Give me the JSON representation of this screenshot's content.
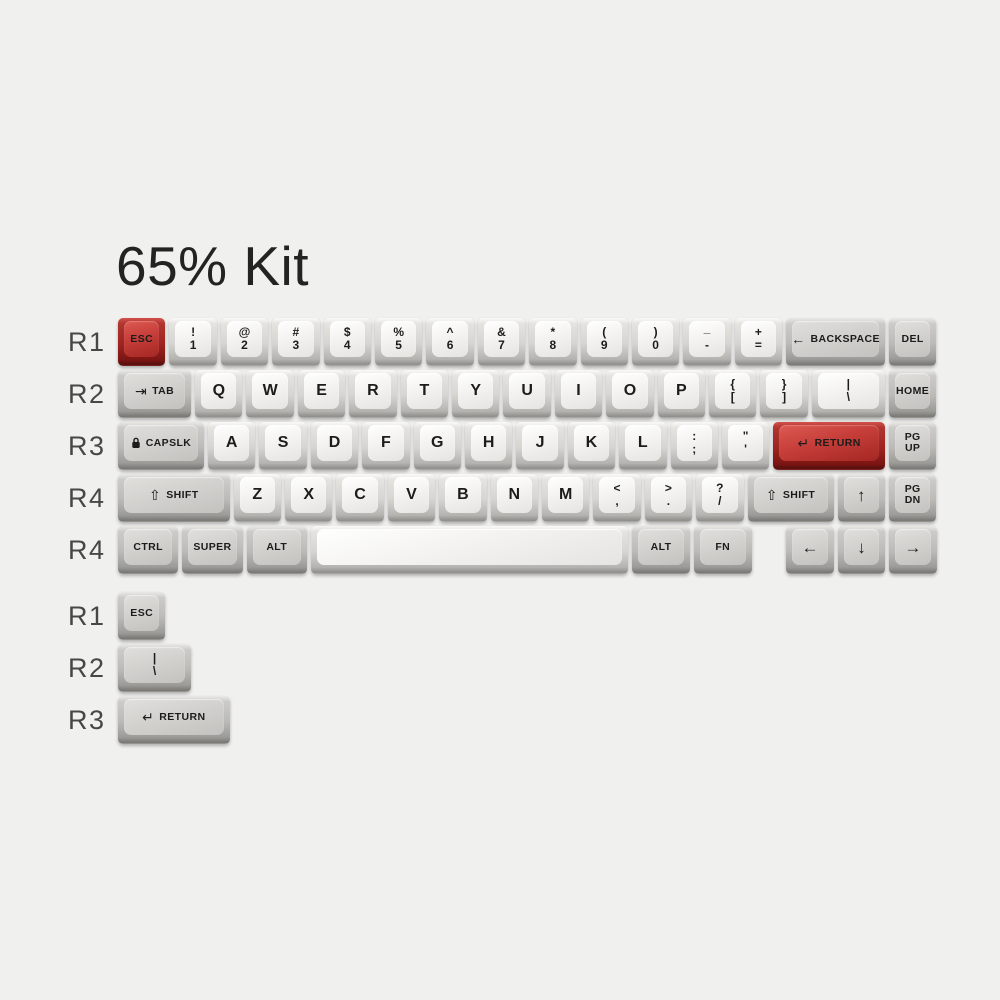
{
  "title": "65% Kit",
  "colors": {
    "background": "#f0f0ef",
    "accent_red": "#b02f2a",
    "key_grey": "#d2d1ce",
    "key_white": "#f3f2f0",
    "legend": "#1c1c1a",
    "row_label_text": "#474747"
  },
  "keyboard": {
    "rows": [
      {
        "label": "R1",
        "keys": [
          {
            "id": "esc",
            "color": "red",
            "u": 1,
            "lg": {
              "t": "single",
              "text": "ESC"
            }
          },
          {
            "id": "1",
            "color": "white",
            "u": 1,
            "lg": {
              "t": "dual",
              "top": "!",
              "bottom": "1"
            }
          },
          {
            "id": "2",
            "color": "white",
            "u": 1,
            "lg": {
              "t": "dual",
              "top": "@",
              "bottom": "2"
            }
          },
          {
            "id": "3",
            "color": "white",
            "u": 1,
            "lg": {
              "t": "dual",
              "top": "#",
              "bottom": "3"
            }
          },
          {
            "id": "4",
            "color": "white",
            "u": 1,
            "lg": {
              "t": "dual",
              "top": "$",
              "bottom": "4"
            }
          },
          {
            "id": "5",
            "color": "white",
            "u": 1,
            "lg": {
              "t": "dual",
              "top": "%",
              "bottom": "5"
            }
          },
          {
            "id": "6",
            "color": "white",
            "u": 1,
            "lg": {
              "t": "dual",
              "top": "^",
              "bottom": "6"
            }
          },
          {
            "id": "7",
            "color": "white",
            "u": 1,
            "lg": {
              "t": "dual",
              "top": "&",
              "bottom": "7"
            }
          },
          {
            "id": "8",
            "color": "white",
            "u": 1,
            "lg": {
              "t": "dual",
              "top": "*",
              "bottom": "8"
            }
          },
          {
            "id": "9",
            "color": "white",
            "u": 1,
            "lg": {
              "t": "dual",
              "top": "(",
              "bottom": "9"
            }
          },
          {
            "id": "0",
            "color": "white",
            "u": 1,
            "lg": {
              "t": "dual",
              "top": ")",
              "bottom": "0"
            }
          },
          {
            "id": "minus",
            "color": "white",
            "u": 1,
            "lg": {
              "t": "dual",
              "top": "_",
              "bottom": "-"
            }
          },
          {
            "id": "equals",
            "color": "white",
            "u": 1,
            "lg": {
              "t": "dual",
              "top": "+",
              "bottom": "="
            }
          },
          {
            "id": "backspace",
            "color": "grey",
            "u": 2,
            "lg": {
              "t": "mod",
              "icon": "backspace",
              "text": "BACKSPACE"
            }
          },
          {
            "id": "del",
            "color": "grey",
            "u": 1,
            "lg": {
              "t": "single",
              "text": "DEL"
            }
          }
        ]
      },
      {
        "label": "R2",
        "keys": [
          {
            "id": "tab",
            "color": "grey",
            "u": 1.5,
            "lg": {
              "t": "mod",
              "icon": "tab",
              "text": "TAB"
            }
          },
          {
            "id": "q",
            "color": "white",
            "u": 1,
            "lg": {
              "t": "letter",
              "text": "Q"
            }
          },
          {
            "id": "w",
            "color": "white",
            "u": 1,
            "lg": {
              "t": "letter",
              "text": "W"
            }
          },
          {
            "id": "e",
            "color": "white",
            "u": 1,
            "lg": {
              "t": "letter",
              "text": "E"
            }
          },
          {
            "id": "r",
            "color": "white",
            "u": 1,
            "lg": {
              "t": "letter",
              "text": "R"
            }
          },
          {
            "id": "t",
            "color": "white",
            "u": 1,
            "lg": {
              "t": "letter",
              "text": "T"
            }
          },
          {
            "id": "y",
            "color": "white",
            "u": 1,
            "lg": {
              "t": "letter",
              "text": "Y"
            }
          },
          {
            "id": "u",
            "color": "white",
            "u": 1,
            "lg": {
              "t": "letter",
              "text": "U"
            }
          },
          {
            "id": "i",
            "color": "white",
            "u": 1,
            "lg": {
              "t": "letter",
              "text": "I"
            }
          },
          {
            "id": "o",
            "color": "white",
            "u": 1,
            "lg": {
              "t": "letter",
              "text": "O"
            }
          },
          {
            "id": "p",
            "color": "white",
            "u": 1,
            "lg": {
              "t": "letter",
              "text": "P"
            }
          },
          {
            "id": "lbracket",
            "color": "white",
            "u": 1,
            "lg": {
              "t": "dual",
              "top": "{",
              "bottom": "["
            }
          },
          {
            "id": "rbracket",
            "color": "white",
            "u": 1,
            "lg": {
              "t": "dual",
              "top": "}",
              "bottom": "]"
            }
          },
          {
            "id": "backslash",
            "color": "white",
            "u": 1.5,
            "lg": {
              "t": "dual",
              "top": "|",
              "bottom": "\\"
            }
          },
          {
            "id": "home",
            "color": "grey",
            "u": 1,
            "lg": {
              "t": "single",
              "text": "HOME"
            }
          }
        ]
      },
      {
        "label": "R3",
        "keys": [
          {
            "id": "capslock",
            "color": "grey",
            "u": 1.75,
            "lg": {
              "t": "mod",
              "icon": "lock",
              "text": "CAPSLK"
            }
          },
          {
            "id": "a",
            "color": "white",
            "u": 1,
            "lg": {
              "t": "letter",
              "text": "A"
            }
          },
          {
            "id": "s",
            "color": "white",
            "u": 1,
            "lg": {
              "t": "letter",
              "text": "S"
            }
          },
          {
            "id": "d",
            "color": "white",
            "u": 1,
            "lg": {
              "t": "letter",
              "text": "D"
            }
          },
          {
            "id": "f",
            "color": "white",
            "u": 1,
            "lg": {
              "t": "letter",
              "text": "F"
            }
          },
          {
            "id": "g",
            "color": "white",
            "u": 1,
            "lg": {
              "t": "letter",
              "text": "G"
            }
          },
          {
            "id": "h",
            "color": "white",
            "u": 1,
            "lg": {
              "t": "letter",
              "text": "H"
            }
          },
          {
            "id": "j",
            "color": "white",
            "u": 1,
            "lg": {
              "t": "letter",
              "text": "J"
            }
          },
          {
            "id": "k",
            "color": "white",
            "u": 1,
            "lg": {
              "t": "letter",
              "text": "K"
            }
          },
          {
            "id": "l",
            "color": "white",
            "u": 1,
            "lg": {
              "t": "letter",
              "text": "L"
            }
          },
          {
            "id": "semicolon",
            "color": "white",
            "u": 1,
            "lg": {
              "t": "dual",
              "top": ":",
              "bottom": ";"
            }
          },
          {
            "id": "quote",
            "color": "white",
            "u": 1,
            "lg": {
              "t": "dual",
              "top": "\"",
              "bottom": "'"
            }
          },
          {
            "id": "return",
            "color": "red",
            "u": 2.25,
            "lg": {
              "t": "mod",
              "icon": "return",
              "text": "RETURN"
            }
          },
          {
            "id": "pgup",
            "color": "grey",
            "u": 1,
            "lg": {
              "t": "twoline",
              "top": "PG",
              "bottom": "UP"
            }
          }
        ]
      },
      {
        "label": "R4",
        "keys": [
          {
            "id": "lshift",
            "color": "grey",
            "u": 2.25,
            "lg": {
              "t": "mod",
              "icon": "shift",
              "text": "SHIFT"
            }
          },
          {
            "id": "z",
            "color": "white",
            "u": 1,
            "lg": {
              "t": "letter",
              "text": "Z"
            }
          },
          {
            "id": "x",
            "color": "white",
            "u": 1,
            "lg": {
              "t": "letter",
              "text": "X"
            }
          },
          {
            "id": "c",
            "color": "white",
            "u": 1,
            "lg": {
              "t": "letter",
              "text": "C"
            }
          },
          {
            "id": "v",
            "color": "white",
            "u": 1,
            "lg": {
              "t": "letter",
              "text": "V"
            }
          },
          {
            "id": "b",
            "color": "white",
            "u": 1,
            "lg": {
              "t": "letter",
              "text": "B"
            }
          },
          {
            "id": "n",
            "color": "white",
            "u": 1,
            "lg": {
              "t": "letter",
              "text": "N"
            }
          },
          {
            "id": "m",
            "color": "white",
            "u": 1,
            "lg": {
              "t": "letter",
              "text": "M"
            }
          },
          {
            "id": "comma",
            "color": "white",
            "u": 1,
            "lg": {
              "t": "dual",
              "top": "<",
              "bottom": ","
            }
          },
          {
            "id": "period",
            "color": "white",
            "u": 1,
            "lg": {
              "t": "dual",
              "top": ">",
              "bottom": "."
            }
          },
          {
            "id": "slash",
            "color": "white",
            "u": 1,
            "lg": {
              "t": "dual",
              "top": "?",
              "bottom": "/"
            }
          },
          {
            "id": "rshift",
            "color": "grey",
            "u": 1.75,
            "lg": {
              "t": "mod",
              "icon": "shift",
              "text": "SHIFT"
            }
          },
          {
            "id": "up",
            "color": "grey",
            "u": 1,
            "lg": {
              "t": "icon",
              "icon": "up"
            }
          },
          {
            "id": "pgdn",
            "color": "grey",
            "u": 1,
            "lg": {
              "t": "twoline",
              "top": "PG",
              "bottom": "DN"
            }
          }
        ]
      },
      {
        "label": "R4",
        "keys": [
          {
            "id": "ctrl",
            "color": "grey",
            "u": 1.25,
            "lg": {
              "t": "single",
              "text": "CTRL"
            }
          },
          {
            "id": "super",
            "color": "grey",
            "u": 1.25,
            "lg": {
              "t": "single",
              "text": "SUPER"
            }
          },
          {
            "id": "lalt",
            "color": "grey",
            "u": 1.25,
            "lg": {
              "t": "single",
              "text": "ALT"
            }
          },
          {
            "id": "space",
            "color": "white",
            "u": 6.25,
            "lg": {
              "t": "none"
            }
          },
          {
            "id": "ralt",
            "color": "grey",
            "u": 1.2,
            "lg": {
              "t": "single",
              "text": "ALT"
            }
          },
          {
            "id": "fn",
            "color": "grey",
            "u": 1.2,
            "lg": {
              "t": "single",
              "text": "FN"
            }
          },
          {
            "id": "gap",
            "spacer": true,
            "u": 0.6,
            "lg": {
              "t": "none"
            }
          },
          {
            "id": "left",
            "color": "grey",
            "u": 1,
            "lg": {
              "t": "icon",
              "icon": "left"
            }
          },
          {
            "id": "down",
            "color": "grey",
            "u": 1,
            "lg": {
              "t": "icon",
              "icon": "down"
            }
          },
          {
            "id": "right",
            "color": "grey",
            "u": 1,
            "lg": {
              "t": "icon",
              "icon": "right"
            }
          }
        ]
      }
    ],
    "extra_rows": [
      {
        "label": "R1",
        "keys": [
          {
            "id": "esc-alt",
            "color": "grey",
            "u": 1,
            "lg": {
              "t": "single",
              "text": "ESC"
            }
          }
        ]
      },
      {
        "label": "R2",
        "keys": [
          {
            "id": "backslash-alt",
            "color": "grey",
            "u": 1.5,
            "lg": {
              "t": "dual",
              "top": "|",
              "bottom": "\\"
            }
          }
        ]
      },
      {
        "label": "R3",
        "keys": [
          {
            "id": "return-alt",
            "color": "grey",
            "u": 2.25,
            "lg": {
              "t": "mod",
              "icon": "return",
              "text": "RETURN"
            }
          }
        ]
      }
    ]
  }
}
